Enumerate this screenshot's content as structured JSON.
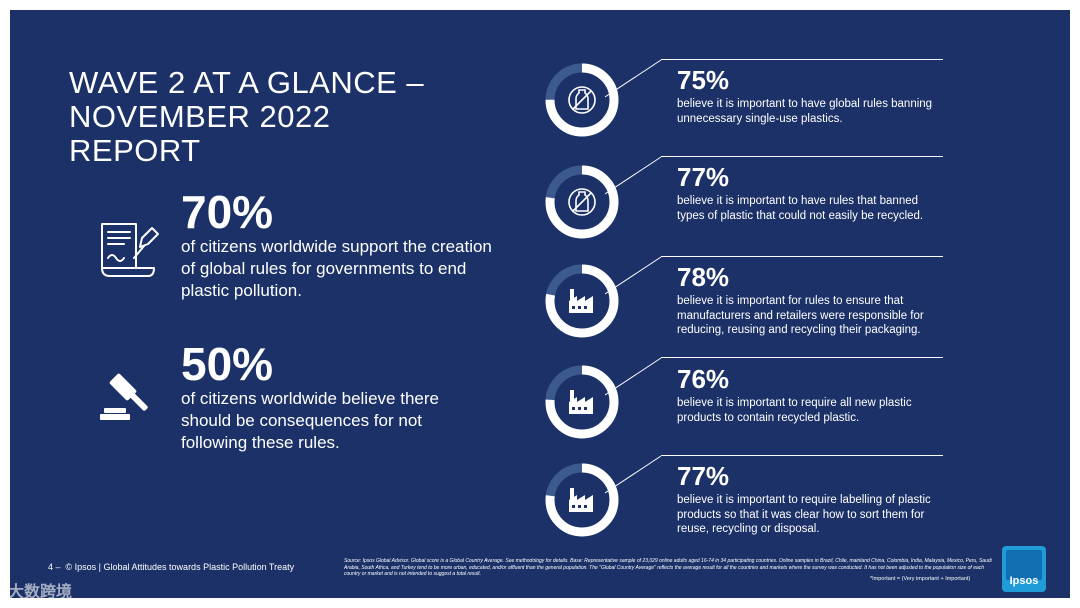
{
  "title": {
    "line1": "WAVE 2 AT A GLANCE –",
    "line2": "NOVEMBER 2022",
    "line3": "REPORT"
  },
  "left_stats": [
    {
      "value": "70%",
      "text": "of citizens worldwide support the creation of global rules for governments to end plastic pollution.",
      "icon": "contract-signing-icon"
    },
    {
      "value": "50%",
      "text": "of citizens worldwide believe there should be consequences for not following these rules.",
      "icon": "gavel-icon"
    }
  ],
  "items": [
    {
      "percent": "75%",
      "value": 75,
      "icon": "no-plastic-bottle-icon",
      "text": "believe it is important to have global rules banning unnecessary single-use plastics."
    },
    {
      "percent": "77%",
      "value": 77,
      "icon": "no-plastic-bottle-icon",
      "text": "believe it is important to have rules that banned types of plastic that could not easily be recycled."
    },
    {
      "percent": "78%",
      "value": 78,
      "icon": "factory-icon",
      "text": "believe it is important for rules to ensure that manufacturers and retailers were responsible for reducing, reusing and recycling their packaging."
    },
    {
      "percent": "76%",
      "value": 76,
      "icon": "factory-icon",
      "text": "believe it is important to require all new plastic products to contain recycled plastic."
    },
    {
      "percent": "77%",
      "value": 77,
      "icon": "factory-icon",
      "text": "believe it is important to require labelling of plastic products so that it was clear how to sort them for reuse, recycling or disposal."
    }
  ],
  "footer": {
    "page": "4 –",
    "label": "© Ipsos | Global Attitudes towards Plastic Pollution Treaty",
    "source": "Source: Ipsos Global Advisor. Global score is a Global Country Average. See methodology for details. Base: Representative sample of 23,029 online adults aged 16-74 in 34 participating countries. Online samples in Brazil, Chile, mainland China, Colombia, India, Malaysia, Mexico, Peru, Saudi Arabia, South Africa, and Turkey tend to be more urban, educated, and/or affluent than the general population. The \"Global Country Average\" reflects the average result for all the countries and markets where the survey was conducted. It has not been adjusted to the population size of each country or market and is not intended to suggest a total result.",
    "important": "*Important = (Very important + Important)",
    "logo": "Ipsos"
  },
  "watermark": "大数跨境",
  "colors": {
    "background": "#1b3167",
    "ring_track": "#3d5a8f",
    "ring_fill": "#ffffff",
    "text": "#ffffff"
  }
}
